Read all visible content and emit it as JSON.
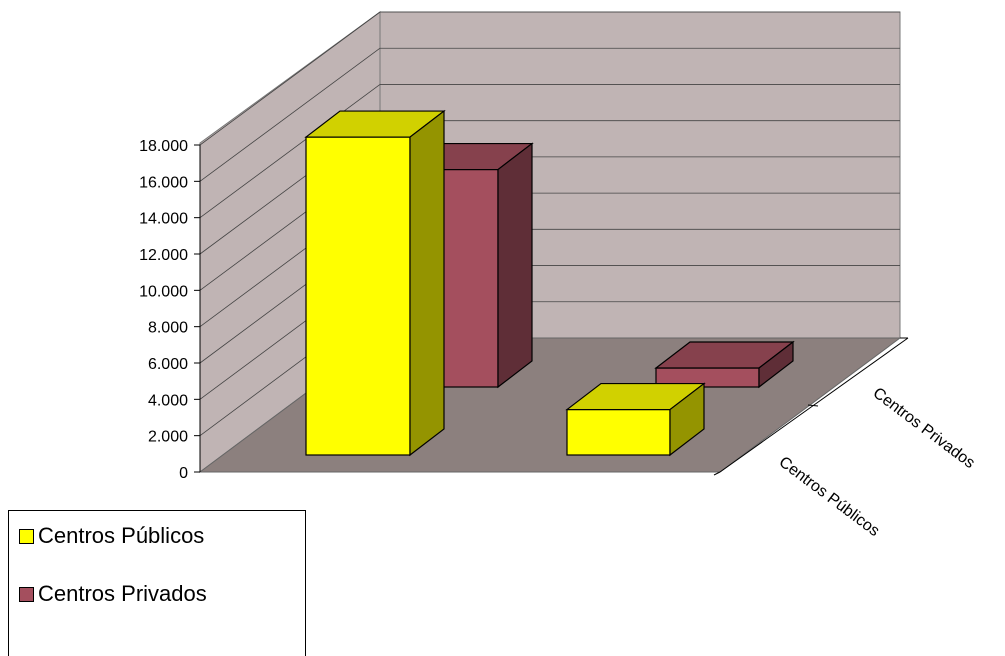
{
  "chart_data": {
    "type": "bar",
    "subtype": "3d-clustered",
    "categories": [
      "Centros Públicos",
      "Centros Privados"
    ],
    "series": [
      {
        "name": "Centros Públicos",
        "color": "#FFFF00",
        "values": [
          17500,
          2500
        ]
      },
      {
        "name": "Centros Privados",
        "color": "#A44F5E",
        "values": [
          12600,
          1100
        ]
      }
    ],
    "y_ticks": [
      "0",
      "2.000",
      "4.000",
      "6.000",
      "8.000",
      "10.000",
      "12.000",
      "14.000",
      "16.000",
      "18.000"
    ],
    "ylim": [
      0,
      18000
    ],
    "grid": true,
    "legend_position": "bottom-left",
    "wall_color": "#C0B4B4",
    "floor_color": "#8C807E"
  }
}
